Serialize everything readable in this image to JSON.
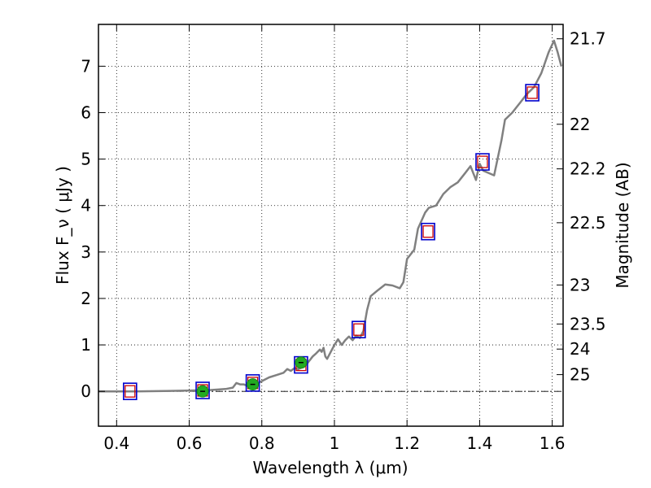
{
  "chart_data": {
    "type": "scatter",
    "title": "",
    "xlabel": "Wavelength  λ (μm)",
    "ylabel": "Flux  F_ν  ( μJy )",
    "ylabel_right": "Magnitude (AB)",
    "xlim": [
      0.35,
      1.63
    ],
    "ylim": [
      -0.75,
      7.9
    ],
    "grid": true,
    "colors": {
      "spectrum": "#808080",
      "model_box": "#0000cc",
      "observed_box": "#cc0000",
      "detection": "#22aa22",
      "zero_line": "#000000"
    },
    "x_ticks": [
      "0.4",
      "0.6",
      "0.8",
      "1",
      "1.2",
      "1.4",
      "1.6"
    ],
    "x_tick_values": [
      0.4,
      0.6,
      0.8,
      1.0,
      1.2,
      1.4,
      1.6
    ],
    "y_ticks": [
      "0",
      "1",
      "2",
      "3",
      "4",
      "5",
      "6",
      "7"
    ],
    "y_tick_values": [
      0,
      1,
      2,
      3,
      4,
      5,
      6,
      7
    ],
    "mag_ticks": [
      {
        "label": "21.7",
        "flux": 7.59
      },
      {
        "label": "22",
        "flux": 5.75
      },
      {
        "label": "22.2",
        "flux": 4.79
      },
      {
        "label": "22.5",
        "flux": 3.63
      },
      {
        "label": "23",
        "flux": 2.29
      },
      {
        "label": "23.5",
        "flux": 1.45
      },
      {
        "label": "24",
        "flux": 0.91
      },
      {
        "label": "25",
        "flux": 0.36
      }
    ],
    "spectrum": [
      [
        0.35,
        0.0
      ],
      [
        0.45,
        0.0
      ],
      [
        0.55,
        0.01
      ],
      [
        0.62,
        0.02
      ],
      [
        0.66,
        0.03
      ],
      [
        0.7,
        0.05
      ],
      [
        0.72,
        0.08
      ],
      [
        0.73,
        0.18
      ],
      [
        0.74,
        0.15
      ],
      [
        0.75,
        0.15
      ],
      [
        0.76,
        0.12
      ],
      [
        0.78,
        0.14
      ],
      [
        0.8,
        0.22
      ],
      [
        0.82,
        0.3
      ],
      [
        0.84,
        0.35
      ],
      [
        0.86,
        0.4
      ],
      [
        0.87,
        0.48
      ],
      [
        0.88,
        0.44
      ],
      [
        0.89,
        0.5
      ],
      [
        0.9,
        0.48
      ],
      [
        0.92,
        0.55
      ],
      [
        0.94,
        0.75
      ],
      [
        0.95,
        0.82
      ],
      [
        0.96,
        0.9
      ],
      [
        0.965,
        0.85
      ],
      [
        0.97,
        0.94
      ],
      [
        0.975,
        0.75
      ],
      [
        0.98,
        0.7
      ],
      [
        0.99,
        0.85
      ],
      [
        1.0,
        1.0
      ],
      [
        1.01,
        1.12
      ],
      [
        1.02,
        1.0
      ],
      [
        1.03,
        1.1
      ],
      [
        1.04,
        1.18
      ],
      [
        1.05,
        1.1
      ],
      [
        1.06,
        1.2
      ],
      [
        1.07,
        1.15
      ],
      [
        1.08,
        1.3
      ],
      [
        1.09,
        1.75
      ],
      [
        1.1,
        2.05
      ],
      [
        1.12,
        2.18
      ],
      [
        1.14,
        2.3
      ],
      [
        1.16,
        2.28
      ],
      [
        1.18,
        2.22
      ],
      [
        1.19,
        2.35
      ],
      [
        1.2,
        2.85
      ],
      [
        1.22,
        3.05
      ],
      [
        1.23,
        3.5
      ],
      [
        1.25,
        3.85
      ],
      [
        1.26,
        3.95
      ],
      [
        1.28,
        4.0
      ],
      [
        1.3,
        4.25
      ],
      [
        1.32,
        4.4
      ],
      [
        1.34,
        4.5
      ],
      [
        1.36,
        4.7
      ],
      [
        1.375,
        4.85
      ],
      [
        1.39,
        4.55
      ],
      [
        1.4,
        4.9
      ],
      [
        1.41,
        4.75
      ],
      [
        1.44,
        4.65
      ],
      [
        1.46,
        5.4
      ],
      [
        1.47,
        5.85
      ],
      [
        1.49,
        6.0
      ],
      [
        1.51,
        6.2
      ],
      [
        1.53,
        6.4
      ],
      [
        1.55,
        6.55
      ],
      [
        1.57,
        6.85
      ],
      [
        1.59,
        7.3
      ],
      [
        1.605,
        7.55
      ],
      [
        1.615,
        7.3
      ],
      [
        1.625,
        7.0
      ]
    ],
    "model_boxes": [
      {
        "x": 0.437,
        "y": 0.0
      },
      {
        "x": 0.637,
        "y": 0.02
      },
      {
        "x": 0.775,
        "y": 0.18
      },
      {
        "x": 0.908,
        "y": 0.57
      },
      {
        "x": 1.067,
        "y": 1.33
      },
      {
        "x": 1.258,
        "y": 3.44
      },
      {
        "x": 1.408,
        "y": 4.94
      },
      {
        "x": 1.545,
        "y": 6.43
      }
    ],
    "observed_boxes": [
      {
        "x": 0.437,
        "y": 0.0
      },
      {
        "x": 0.637,
        "y": 0.02
      },
      {
        "x": 0.775,
        "y": 0.18
      },
      {
        "x": 0.908,
        "y": 0.57
      },
      {
        "x": 1.067,
        "y": 1.33
      },
      {
        "x": 1.258,
        "y": 3.44
      },
      {
        "x": 1.408,
        "y": 4.94
      },
      {
        "x": 1.545,
        "y": 6.43
      }
    ],
    "detections": [
      {
        "x": 0.637,
        "y": 0.0
      },
      {
        "x": 0.775,
        "y": 0.15
      },
      {
        "x": 0.908,
        "y": 0.62
      }
    ]
  }
}
